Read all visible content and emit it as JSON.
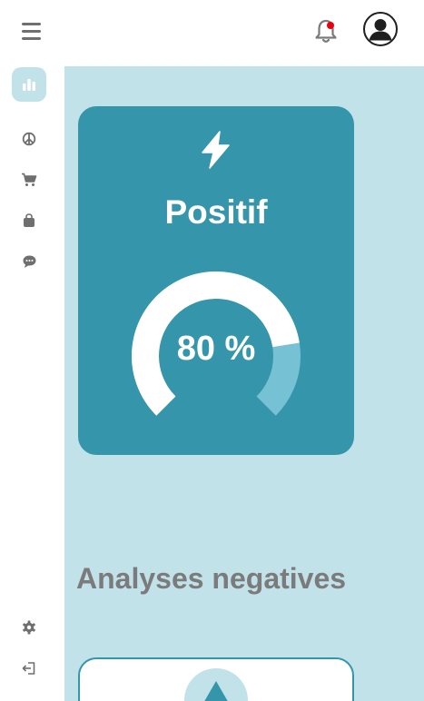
{
  "header": {
    "menu_icon": "hamburger-menu-icon",
    "notification_icon": "bell-icon",
    "avatar_icon": "user-avatar-icon"
  },
  "sidebar": {
    "items": [
      {
        "icon": "bar-chart-icon",
        "active": true
      },
      {
        "icon": "peace-icon",
        "active": false
      },
      {
        "icon": "cart-icon",
        "active": false
      },
      {
        "icon": "shopping-bag-icon",
        "active": false
      },
      {
        "icon": "chat-icon",
        "active": false
      }
    ],
    "bottom_items": [
      {
        "icon": "gear-icon"
      },
      {
        "icon": "logout-icon"
      }
    ]
  },
  "card": {
    "icon": "lightning-bolt-icon",
    "title": "Positif",
    "percent": 80,
    "value_text": "80 %"
  },
  "section": {
    "title": "Analyses negatives"
  },
  "card2": {
    "icon": "triangle-up-icon"
  },
  "colors": {
    "accent": "#3595ab",
    "background": "#c2e2ea",
    "gauge_track": "#76c1d3",
    "notification_dot": "#e8000d"
  }
}
